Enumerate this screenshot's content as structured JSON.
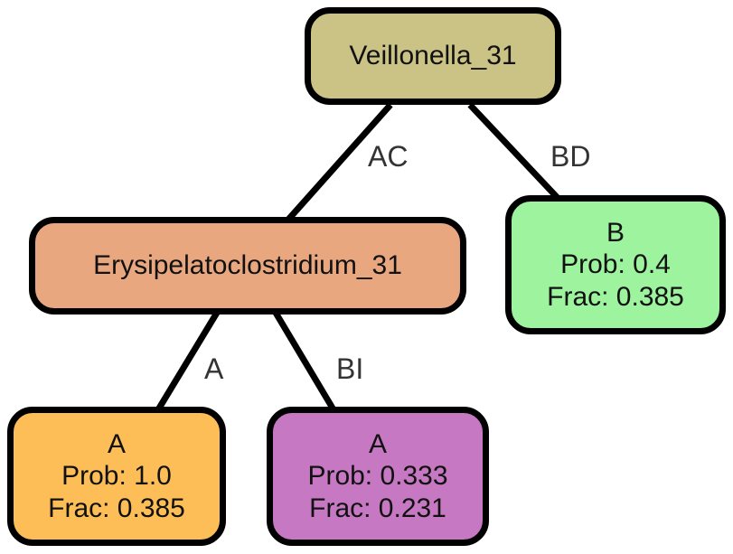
{
  "colors": {
    "root": "#cbc286",
    "internal": "#e9a780",
    "leaf_b": "#9df39e",
    "leaf_a1": "#fdbe57",
    "leaf_a2": "#c778c2",
    "edge": "#000000"
  },
  "root": {
    "label": "Veillonella_31"
  },
  "internal": {
    "label": "Erysipelatoclostridium_31"
  },
  "leaf_b": {
    "class": "B",
    "prob": "Prob: 0.4",
    "frac": "Frac: 0.385"
  },
  "leaf_a1": {
    "class": "A",
    "prob": "Prob: 1.0",
    "frac": "Frac: 0.385"
  },
  "leaf_a2": {
    "class": "A",
    "prob": "Prob: 0.333",
    "frac": "Frac: 0.231"
  },
  "edges": {
    "root_internal": "AC",
    "root_leaf_b": "BD",
    "internal_leaf_a1": "A",
    "internal_leaf_a2": "BI"
  }
}
